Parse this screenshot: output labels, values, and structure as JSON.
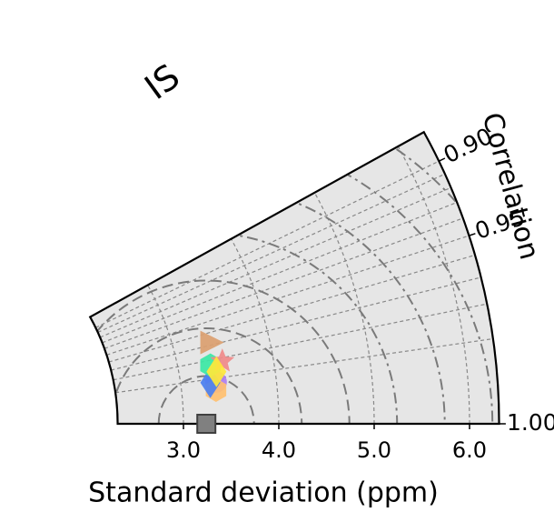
{
  "chart_data": {
    "type": "taylor-diagram",
    "title": "IS",
    "xlabel": "Standard deviation (ppm)",
    "ylabel": "Correlation",
    "xlim": [
      2.31,
      6.31
    ],
    "x_ticks": [
      "3.0",
      "4.0",
      "5.0",
      "6.0"
    ],
    "x_tick_values": [
      3.0,
      4.0,
      5.0,
      6.0
    ],
    "correlation_ticks": [
      "0.90",
      "0.95",
      "1.00"
    ],
    "correlation_tick_values": [
      0.9,
      0.95,
      1.0
    ],
    "correlation_range": [
      0.875,
      1.0
    ],
    "grid": true,
    "reference": {
      "std": 3.24,
      "correlation": 1.0,
      "marker": "square",
      "color": "#808080"
    },
    "std_arcs": [
      3.0,
      4.0,
      5.0,
      6.0
    ],
    "rms_contours": [
      0.5,
      1.0,
      1.5,
      2.0,
      2.5,
      3.0,
      3.5
    ],
    "series": [
      {
        "std": 3.39,
        "correlation": 0.968,
        "marker": "triangle-right",
        "color": "#dba070"
      },
      {
        "std": 3.34,
        "correlation": 0.983,
        "marker": "hexagon",
        "color": "#3be8a5"
      },
      {
        "std": 3.47,
        "correlation": 0.982,
        "marker": "star",
        "color": "#f08a8a"
      },
      {
        "std": 3.39,
        "correlation": 0.987,
        "marker": "diamond",
        "color": "#ffe83a"
      },
      {
        "std": 3.37,
        "correlation": 0.9915,
        "marker": "circle",
        "color": "#b07ef0"
      },
      {
        "std": 3.31,
        "correlation": 0.9915,
        "marker": "diamond",
        "color": "#4a7ff0"
      },
      {
        "std": 3.36,
        "correlation": 0.9945,
        "marker": "hexagon",
        "color": "#ffc070"
      }
    ],
    "colors": {
      "background": "#e6e6e6",
      "grid": "#888888",
      "contour": "#7a7a7a",
      "frame": "#000000"
    }
  }
}
